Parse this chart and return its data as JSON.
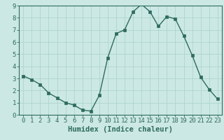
{
  "x": [
    0,
    1,
    2,
    3,
    4,
    5,
    6,
    7,
    8,
    9,
    10,
    11,
    12,
    13,
    14,
    15,
    16,
    17,
    18,
    19,
    20,
    21,
    22,
    23
  ],
  "y": [
    3.2,
    2.9,
    2.5,
    1.8,
    1.4,
    1.0,
    0.8,
    0.4,
    0.3,
    1.6,
    4.7,
    6.7,
    7.0,
    8.5,
    9.1,
    8.5,
    7.3,
    8.1,
    7.9,
    6.5,
    4.9,
    3.1,
    2.1,
    1.3
  ],
  "xlabel": "Humidex (Indice chaleur)",
  "ylim": [
    0,
    9
  ],
  "xlim_min": -0.5,
  "xlim_max": 23.5,
  "line_color": "#2e6b5e",
  "marker_color": "#2e6b5e",
  "bg_color": "#cce8e4",
  "grid_color": "#add4cf",
  "xticks": [
    0,
    1,
    2,
    3,
    4,
    5,
    6,
    7,
    8,
    9,
    10,
    11,
    12,
    13,
    14,
    15,
    16,
    17,
    18,
    19,
    20,
    21,
    22,
    23
  ],
  "yticks": [
    0,
    1,
    2,
    3,
    4,
    5,
    6,
    7,
    8,
    9
  ],
  "xlabel_fontsize": 7.5,
  "tick_fontsize": 6.5
}
